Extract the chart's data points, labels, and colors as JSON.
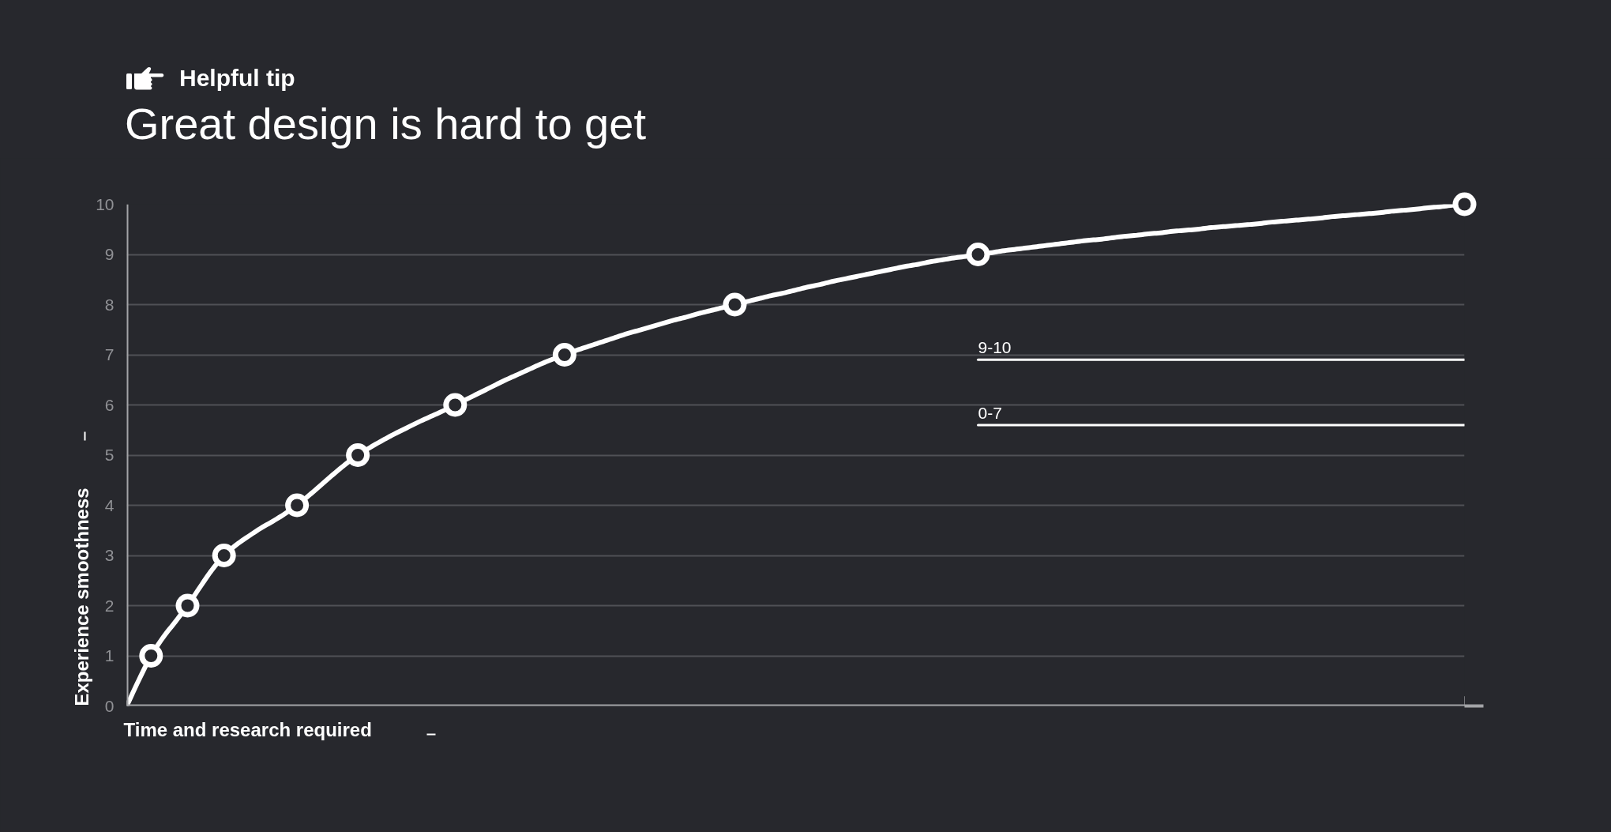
{
  "chart_data": {
    "type": "line",
    "title": "Great design is hard to get",
    "annotations": [
      "Helpful tip"
    ],
    "xlabel": "Time and research required",
    "ylabel": "Experience smoothness",
    "categories": [
      null,
      null,
      null,
      null,
      null,
      null,
      null,
      null,
      null,
      null,
      null,
      null,
      null,
      null,
      null,
      null,
      null,
      null,
      null,
      null,
      null,
      null,
      null,
      null,
      null,
      null,
      null,
      null,
      null,
      null,
      null,
      null,
      null,
      null,
      null,
      null,
      null,
      null,
      null,
      null,
      null,
      null,
      null,
      null,
      null,
      null,
      null,
      null,
      null,
      null,
      null,
      null,
      null,
      null,
      null,
      null,
      null,
      null,
      null,
      null,
      null,
      null,
      null,
      null,
      null,
      null,
      null,
      null,
      null,
      null,
      null,
      null,
      null,
      null,
      null,
      null,
      null,
      null,
      null,
      null,
      null,
      null,
      null,
      null,
      null,
      null,
      null,
      null,
      null,
      null,
      null,
      null,
      null,
      null,
      null,
      null,
      null,
      null,
      null,
      null,
      null,
      null,
      null,
      null,
      null,
      null,
      null,
      null,
      null,
      null,
      null
    ],
    "ylim": [
      0,
      10
    ],
    "yticks": [
      0,
      1,
      2,
      3,
      4,
      5,
      6,
      7,
      8,
      9,
      10
    ],
    "tick_labels": "y",
    "grid": "y",
    "series": [
      {
        "color": "#ffffff",
        "marker": "none",
        "values": [
          0,
          0.52,
          1,
          1.37,
          1.68,
          2,
          2.36,
          2.71,
          3,
          3.21,
          3.38,
          3.54,
          3.68,
          3.83,
          4,
          4.2,
          4.41,
          4.62,
          4.82,
          5,
          5.15,
          5.29,
          5.42,
          5.54,
          5.66,
          5.77,
          5.88,
          6,
          6.12,
          6.24,
          6.36,
          6.48,
          6.59,
          6.7,
          6.81,
          6.91,
          7,
          7.09,
          7.17,
          7.25,
          7.33,
          7.41,
          7.48,
          7.55,
          7.62,
          7.69,
          7.75,
          7.82,
          7.88,
          7.94,
          8,
          8.06,
          8.12,
          8.18,
          8.23,
          8.29,
          8.35,
          8.4,
          8.46,
          8.51,
          8.56,
          8.61,
          8.66,
          8.71,
          8.76,
          8.8,
          8.85,
          8.89,
          8.93,
          8.96,
          9,
          9.03,
          9.07,
          9.1,
          9.13,
          9.16,
          9.19,
          9.22,
          9.25,
          9.28,
          9.3,
          9.33,
          9.36,
          9.38,
          9.41,
          9.43,
          9.46,
          9.48,
          9.5,
          9.53,
          9.55,
          9.57,
          9.59,
          9.61,
          9.64,
          9.66,
          9.68,
          9.7,
          9.72,
          9.75,
          9.77,
          9.79,
          9.81,
          9.83,
          9.86,
          9.88,
          9.9,
          9.93,
          9.95,
          9.98,
          10
        ]
      },
      {
        "type": "scatter",
        "color": "#ffffff",
        "marker": "circle",
        "values": [
          null,
          null,
          1,
          null,
          null,
          2,
          null,
          null,
          3,
          null,
          null,
          null,
          null,
          null,
          4,
          null,
          null,
          null,
          null,
          5,
          null,
          null,
          null,
          null,
          null,
          null,
          null,
          6,
          null,
          null,
          null,
          null,
          null,
          null,
          null,
          null,
          7,
          null,
          null,
          null,
          null,
          null,
          null,
          null,
          null,
          null,
          null,
          null,
          null,
          null,
          8,
          null,
          null,
          null,
          null,
          null,
          null,
          null,
          null,
          null,
          null,
          null,
          null,
          null,
          null,
          null,
          null,
          null,
          null,
          null,
          9,
          null,
          null,
          null,
          null,
          null,
          null,
          null,
          null,
          null,
          null,
          null,
          null,
          null,
          null,
          null,
          null,
          null,
          null,
          null,
          null,
          null,
          null,
          null,
          null,
          null,
          null,
          null,
          null,
          null,
          null,
          null,
          null,
          null,
          null,
          null,
          null,
          null,
          null,
          null,
          10
        ]
      },
      {
        "type": "line",
        "name": "9-10",
        "color": "#ffffff",
        "marker": "none",
        "values": [
          null,
          null,
          null,
          null,
          null,
          null,
          null,
          null,
          null,
          null,
          null,
          null,
          null,
          null,
          null,
          null,
          null,
          null,
          null,
          null,
          null,
          null,
          null,
          null,
          null,
          null,
          null,
          null,
          null,
          null,
          null,
          null,
          null,
          null,
          null,
          null,
          null,
          null,
          null,
          null,
          null,
          null,
          null,
          null,
          null,
          null,
          null,
          null,
          null,
          null,
          null,
          null,
          null,
          null,
          null,
          null,
          null,
          null,
          null,
          null,
          null,
          null,
          null,
          null,
          null,
          null,
          null,
          null,
          null,
          null,
          6.9,
          6.9,
          6.9,
          6.9,
          6.9,
          6.9,
          6.9,
          6.9,
          6.9,
          6.9,
          6.9,
          6.9,
          6.9,
          6.9,
          6.9,
          6.9,
          6.9,
          6.9,
          6.9,
          6.9,
          6.9,
          6.9,
          6.9,
          6.9,
          6.9,
          6.9,
          6.9,
          6.9,
          6.9,
          6.9,
          6.9,
          6.9,
          6.9,
          6.9,
          6.9,
          6.9,
          6.9,
          6.9,
          6.9,
          6.9,
          6.9
        ]
      },
      {
        "type": "line",
        "name": "0-7",
        "color": "#ffffff",
        "marker": "none",
        "values": [
          null,
          null,
          null,
          null,
          null,
          null,
          null,
          null,
          null,
          null,
          null,
          null,
          null,
          null,
          null,
          null,
          null,
          null,
          null,
          null,
          null,
          null,
          null,
          null,
          null,
          null,
          null,
          null,
          null,
          null,
          null,
          null,
          null,
          null,
          null,
          null,
          null,
          null,
          null,
          null,
          null,
          null,
          null,
          null,
          null,
          null,
          null,
          null,
          null,
          null,
          null,
          null,
          null,
          null,
          null,
          null,
          null,
          null,
          null,
          null,
          null,
          null,
          null,
          null,
          null,
          null,
          null,
          null,
          null,
          null,
          5.6,
          5.6,
          5.6,
          5.6,
          5.6,
          5.6,
          5.6,
          5.6,
          5.6,
          5.6,
          5.6,
          5.6,
          5.6,
          5.6,
          5.6,
          5.6,
          5.6,
          5.6,
          5.6,
          5.6,
          5.6,
          5.6,
          5.6,
          5.6,
          5.6,
          5.6,
          5.6,
          5.6,
          5.6,
          5.6,
          5.6,
          5.6,
          5.6,
          5.6,
          5.6,
          5.6,
          5.6,
          5.6,
          5.6,
          5.6,
          5.6
        ]
      }
    ]
  }
}
